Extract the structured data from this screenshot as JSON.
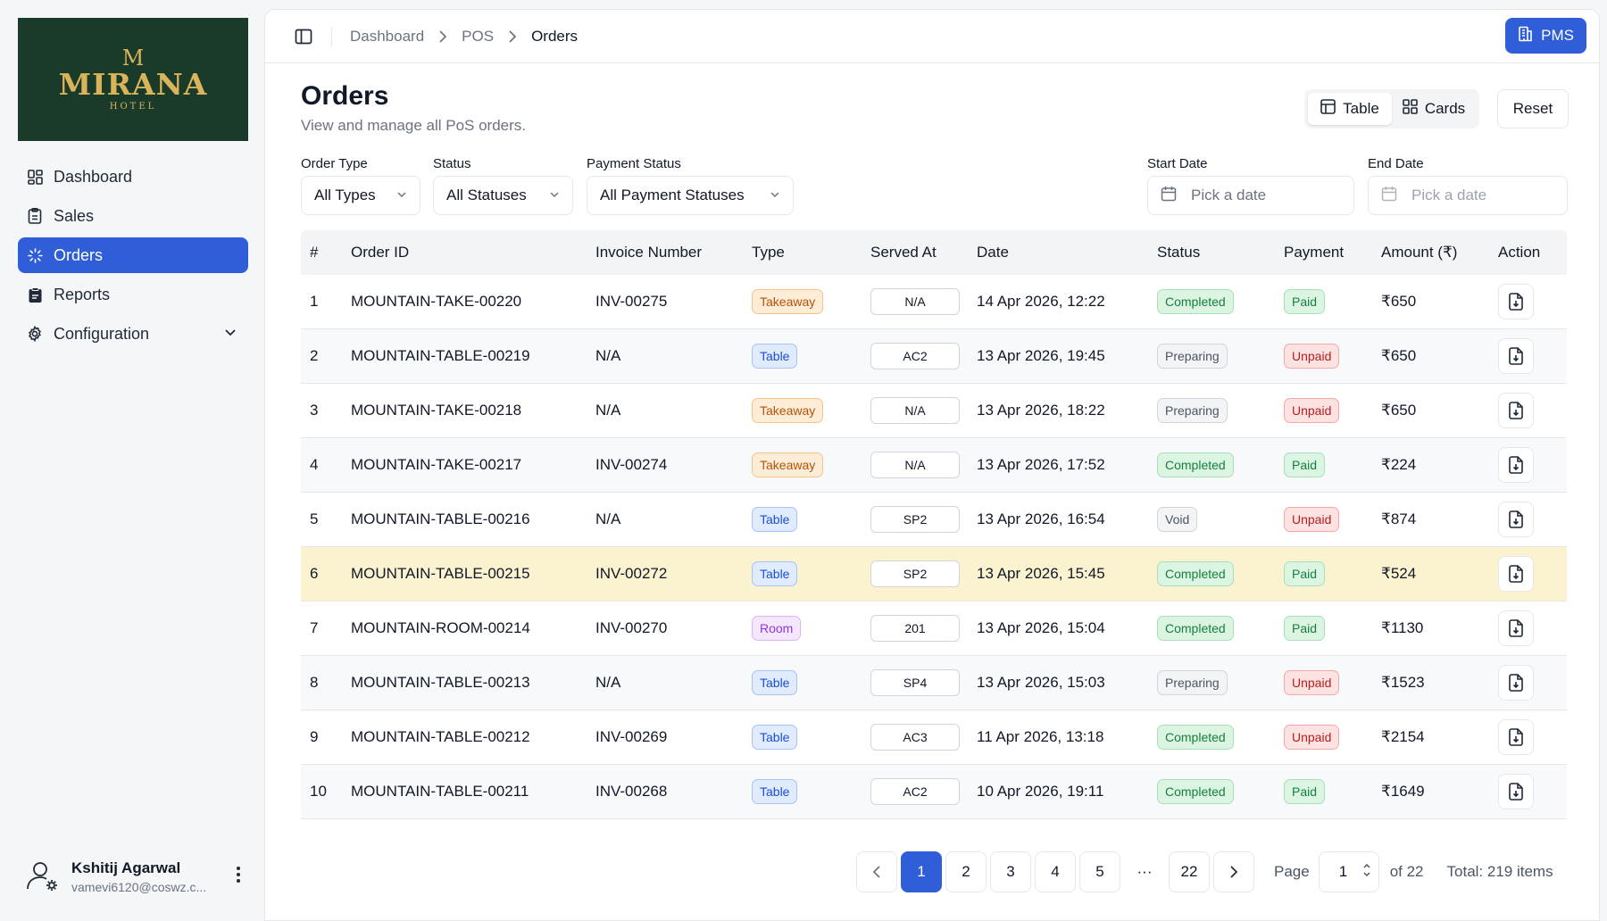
{
  "brand": {
    "name": "MIRANA",
    "crown": "M",
    "sub": "HOTEL"
  },
  "sidebar": {
    "items": [
      {
        "label": "Dashboard",
        "icon": "dashboard-icon",
        "active": false
      },
      {
        "label": "Sales",
        "icon": "sales-icon",
        "active": false
      },
      {
        "label": "Orders",
        "icon": "orders-icon",
        "active": true
      },
      {
        "label": "Reports",
        "icon": "reports-icon",
        "active": false
      },
      {
        "label": "Configuration",
        "icon": "gear-icon",
        "active": false
      }
    ]
  },
  "user": {
    "name": "Kshitij Agarwal",
    "email": "vamevi6120@coswz.c..."
  },
  "breadcrumb": [
    "Dashboard",
    "POS",
    "Orders"
  ],
  "pms_label": "PMS",
  "page": {
    "title": "Orders",
    "subtitle": "View and manage all PoS orders."
  },
  "view_toggle": {
    "table": "Table",
    "cards": "Cards",
    "reset": "Reset"
  },
  "filters": {
    "order_type": {
      "label": "Order Type",
      "value": "All Types"
    },
    "status": {
      "label": "Status",
      "value": "All Statuses"
    },
    "payment_status": {
      "label": "Payment Status",
      "value": "All Payment Statuses"
    },
    "start_date": {
      "label": "Start Date",
      "placeholder": "Pick a date"
    },
    "end_date": {
      "label": "End Date",
      "placeholder": "Pick a date"
    }
  },
  "table": {
    "columns": [
      "#",
      "Order ID",
      "Invoice Number",
      "Type",
      "Served At",
      "Date",
      "Status",
      "Payment",
      "Amount (₹)",
      "Action"
    ],
    "rows": [
      {
        "n": "1",
        "id": "MOUNTAIN-TAKE-00220",
        "inv": "INV-00275",
        "type": "Takeaway",
        "served": "N/A",
        "date": "14 Apr 2026, 12:22",
        "status": "Completed",
        "payment": "Paid",
        "amount": "₹650"
      },
      {
        "n": "2",
        "id": "MOUNTAIN-TABLE-00219",
        "inv": "N/A",
        "type": "Table",
        "served": "AC2",
        "date": "13 Apr 2026, 19:45",
        "status": "Preparing",
        "payment": "Unpaid",
        "amount": "₹650"
      },
      {
        "n": "3",
        "id": "MOUNTAIN-TAKE-00218",
        "inv": "N/A",
        "type": "Takeaway",
        "served": "N/A",
        "date": "13 Apr 2026, 18:22",
        "status": "Preparing",
        "payment": "Unpaid",
        "amount": "₹650"
      },
      {
        "n": "4",
        "id": "MOUNTAIN-TAKE-00217",
        "inv": "INV-00274",
        "type": "Takeaway",
        "served": "N/A",
        "date": "13 Apr 2026, 17:52",
        "status": "Completed",
        "payment": "Paid",
        "amount": "₹224"
      },
      {
        "n": "5",
        "id": "MOUNTAIN-TABLE-00216",
        "inv": "N/A",
        "type": "Table",
        "served": "SP2",
        "date": "13 Apr 2026, 16:54",
        "status": "Void",
        "payment": "Unpaid",
        "amount": "₹874"
      },
      {
        "n": "6",
        "id": "MOUNTAIN-TABLE-00215",
        "inv": "INV-00272",
        "type": "Table",
        "served": "SP2",
        "date": "13 Apr 2026, 15:45",
        "status": "Completed",
        "payment": "Paid",
        "amount": "₹524"
      },
      {
        "n": "7",
        "id": "MOUNTAIN-ROOM-00214",
        "inv": "INV-00270",
        "type": "Room",
        "served": "201",
        "date": "13 Apr 2026, 15:04",
        "status": "Completed",
        "payment": "Paid",
        "amount": "₹1130"
      },
      {
        "n": "8",
        "id": "MOUNTAIN-TABLE-00213",
        "inv": "N/A",
        "type": "Table",
        "served": "SP4",
        "date": "13 Apr 2026, 15:03",
        "status": "Preparing",
        "payment": "Unpaid",
        "amount": "₹1523"
      },
      {
        "n": "9",
        "id": "MOUNTAIN-TABLE-00212",
        "inv": "INV-00269",
        "type": "Table",
        "served": "AC3",
        "date": "11 Apr 2026, 13:18",
        "status": "Completed",
        "payment": "Unpaid",
        "amount": "₹2154"
      },
      {
        "n": "10",
        "id": "MOUNTAIN-TABLE-00211",
        "inv": "INV-00268",
        "type": "Table",
        "served": "AC2",
        "date": "10 Apr 2026, 19:11",
        "status": "Completed",
        "payment": "Paid",
        "amount": "₹1649"
      }
    ]
  },
  "pagination": {
    "pages": [
      "1",
      "2",
      "3",
      "4",
      "5"
    ],
    "ellipsis": "···",
    "last": "22",
    "page_label": "Page",
    "current": "1",
    "of_label": "of 22",
    "total": "Total: 219 items"
  },
  "colors": {
    "accent": "#2f5ed8",
    "highlight_row": "#fbf3cf",
    "logo_bg": "#1b3b2a",
    "logo_gold": "#d9b45a"
  }
}
